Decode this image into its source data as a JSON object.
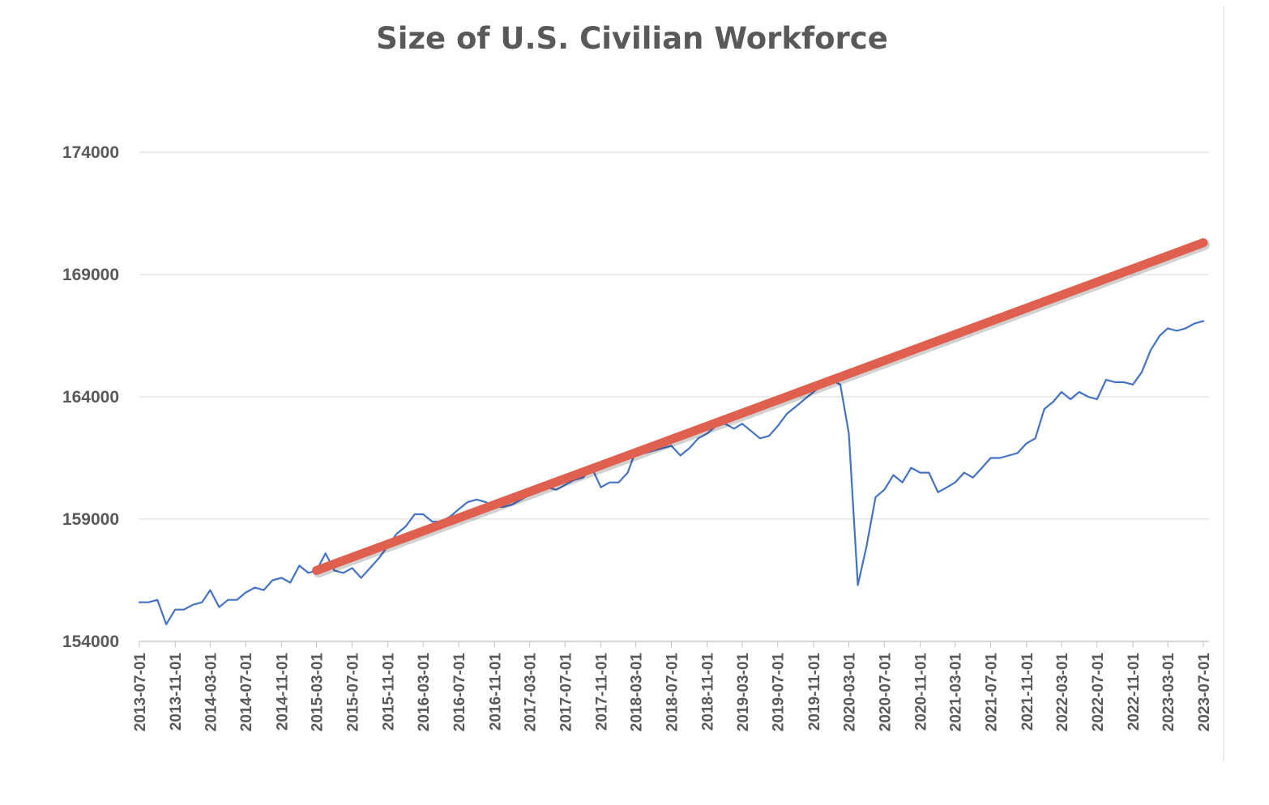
{
  "chart_data": {
    "type": "line",
    "title": "Size of U.S. Civilian Workforce",
    "xlabel": "",
    "ylabel": "",
    "ylim": [
      154000,
      174000
    ],
    "yticks": [
      154000,
      159000,
      164000,
      169000,
      174000
    ],
    "xticks": [
      "2013-07-01",
      "2013-11-01",
      "2014-03-01",
      "2014-07-01",
      "2014-11-01",
      "2015-03-01",
      "2015-07-01",
      "2015-11-01",
      "2016-03-01",
      "2016-07-01",
      "2016-11-01",
      "2017-03-01",
      "2017-07-01",
      "2017-11-01",
      "2018-03-01",
      "2018-07-01",
      "2018-11-01",
      "2019-03-01",
      "2019-07-01",
      "2019-11-01",
      "2020-03-01",
      "2020-07-01",
      "2020-11-01",
      "2021-03-01",
      "2021-07-01",
      "2021-11-01",
      "2022-03-01",
      "2022-07-01",
      "2022-11-01",
      "2023-03-01",
      "2023-07-01"
    ],
    "grid": true,
    "legend": "none",
    "series": [
      {
        "color": "#4472c4",
        "x": [
          "2013-07-01",
          "2013-08-01",
          "2013-09-01",
          "2013-10-01",
          "2013-11-01",
          "2013-12-01",
          "2014-01-01",
          "2014-02-01",
          "2014-03-01",
          "2014-04-01",
          "2014-05-01",
          "2014-06-01",
          "2014-07-01",
          "2014-08-01",
          "2014-09-01",
          "2014-10-01",
          "2014-11-01",
          "2014-12-01",
          "2015-01-01",
          "2015-02-01",
          "2015-03-01",
          "2015-04-01",
          "2015-05-01",
          "2015-06-01",
          "2015-07-01",
          "2015-08-01",
          "2015-09-01",
          "2015-10-01",
          "2015-11-01",
          "2015-12-01",
          "2016-01-01",
          "2016-02-01",
          "2016-03-01",
          "2016-04-01",
          "2016-05-01",
          "2016-06-01",
          "2016-07-01",
          "2016-08-01",
          "2016-09-01",
          "2016-10-01",
          "2016-11-01",
          "2016-12-01",
          "2017-01-01",
          "2017-02-01",
          "2017-03-01",
          "2017-04-01",
          "2017-05-01",
          "2017-06-01",
          "2017-07-01",
          "2017-08-01",
          "2017-09-01",
          "2017-10-01",
          "2017-11-01",
          "2017-12-01",
          "2018-01-01",
          "2018-02-01",
          "2018-03-01",
          "2018-04-01",
          "2018-05-01",
          "2018-06-01",
          "2018-07-01",
          "2018-08-01",
          "2018-09-01",
          "2018-10-01",
          "2018-11-01",
          "2018-12-01",
          "2019-01-01",
          "2019-02-01",
          "2019-03-01",
          "2019-04-01",
          "2019-05-01",
          "2019-06-01",
          "2019-07-01",
          "2019-08-01",
          "2019-09-01",
          "2019-10-01",
          "2019-11-01",
          "2019-12-01",
          "2020-01-01",
          "2020-02-01",
          "2020-03-01",
          "2020-04-01",
          "2020-05-01",
          "2020-06-01",
          "2020-07-01",
          "2020-08-01",
          "2020-09-01",
          "2020-10-01",
          "2020-11-01",
          "2020-12-01",
          "2021-01-01",
          "2021-02-01",
          "2021-03-01",
          "2021-04-01",
          "2021-05-01",
          "2021-06-01",
          "2021-07-01",
          "2021-08-01",
          "2021-09-01",
          "2021-10-01",
          "2021-11-01",
          "2021-12-01",
          "2022-01-01",
          "2022-02-01",
          "2022-03-01",
          "2022-04-01",
          "2022-05-01",
          "2022-06-01",
          "2022-07-01",
          "2022-08-01",
          "2022-09-01",
          "2022-10-01",
          "2022-11-01",
          "2022-12-01",
          "2023-01-01",
          "2023-02-01",
          "2023-03-01",
          "2023-04-01",
          "2023-05-01",
          "2023-06-01",
          "2023-07-01"
        ],
        "values": [
          155600,
          155600,
          155700,
          154700,
          155300,
          155300,
          155500,
          155600,
          156100,
          155400,
          155700,
          155700,
          156000,
          156200,
          156100,
          156500,
          156600,
          156400,
          157100,
          156800,
          156900,
          157600,
          156900,
          156800,
          157000,
          156600,
          157000,
          157400,
          157900,
          158400,
          158700,
          159200,
          159200,
          158900,
          158900,
          159100,
          159400,
          159700,
          159800,
          159700,
          159500,
          159500,
          159600,
          159800,
          160000,
          160100,
          160300,
          160200,
          160400,
          160600,
          160700,
          161100,
          160300,
          160500,
          160500,
          160900,
          161800,
          161700,
          161800,
          161900,
          162000,
          161600,
          161900,
          162300,
          162500,
          162800,
          162900,
          162700,
          162900,
          162600,
          162300,
          162400,
          162800,
          163300,
          163600,
          163900,
          164200,
          164500,
          164700,
          164500,
          162500,
          156300,
          157900,
          159900,
          160200,
          160800,
          160500,
          161100,
          160900,
          160900,
          160100,
          160300,
          160500,
          160900,
          160700,
          161100,
          161500,
          161500,
          161600,
          161700,
          162100,
          162300,
          163500,
          163800,
          164200,
          163900,
          164200,
          164000,
          163900,
          164700,
          164600,
          164600,
          164500,
          165000,
          165900,
          166500,
          166800,
          166700,
          166800,
          167000,
          167100
        ]
      },
      {
        "color": "#e06050",
        "x": [
          "2015-03-01",
          "2023-07-01"
        ],
        "values": [
          156900,
          170300
        ]
      }
    ]
  }
}
